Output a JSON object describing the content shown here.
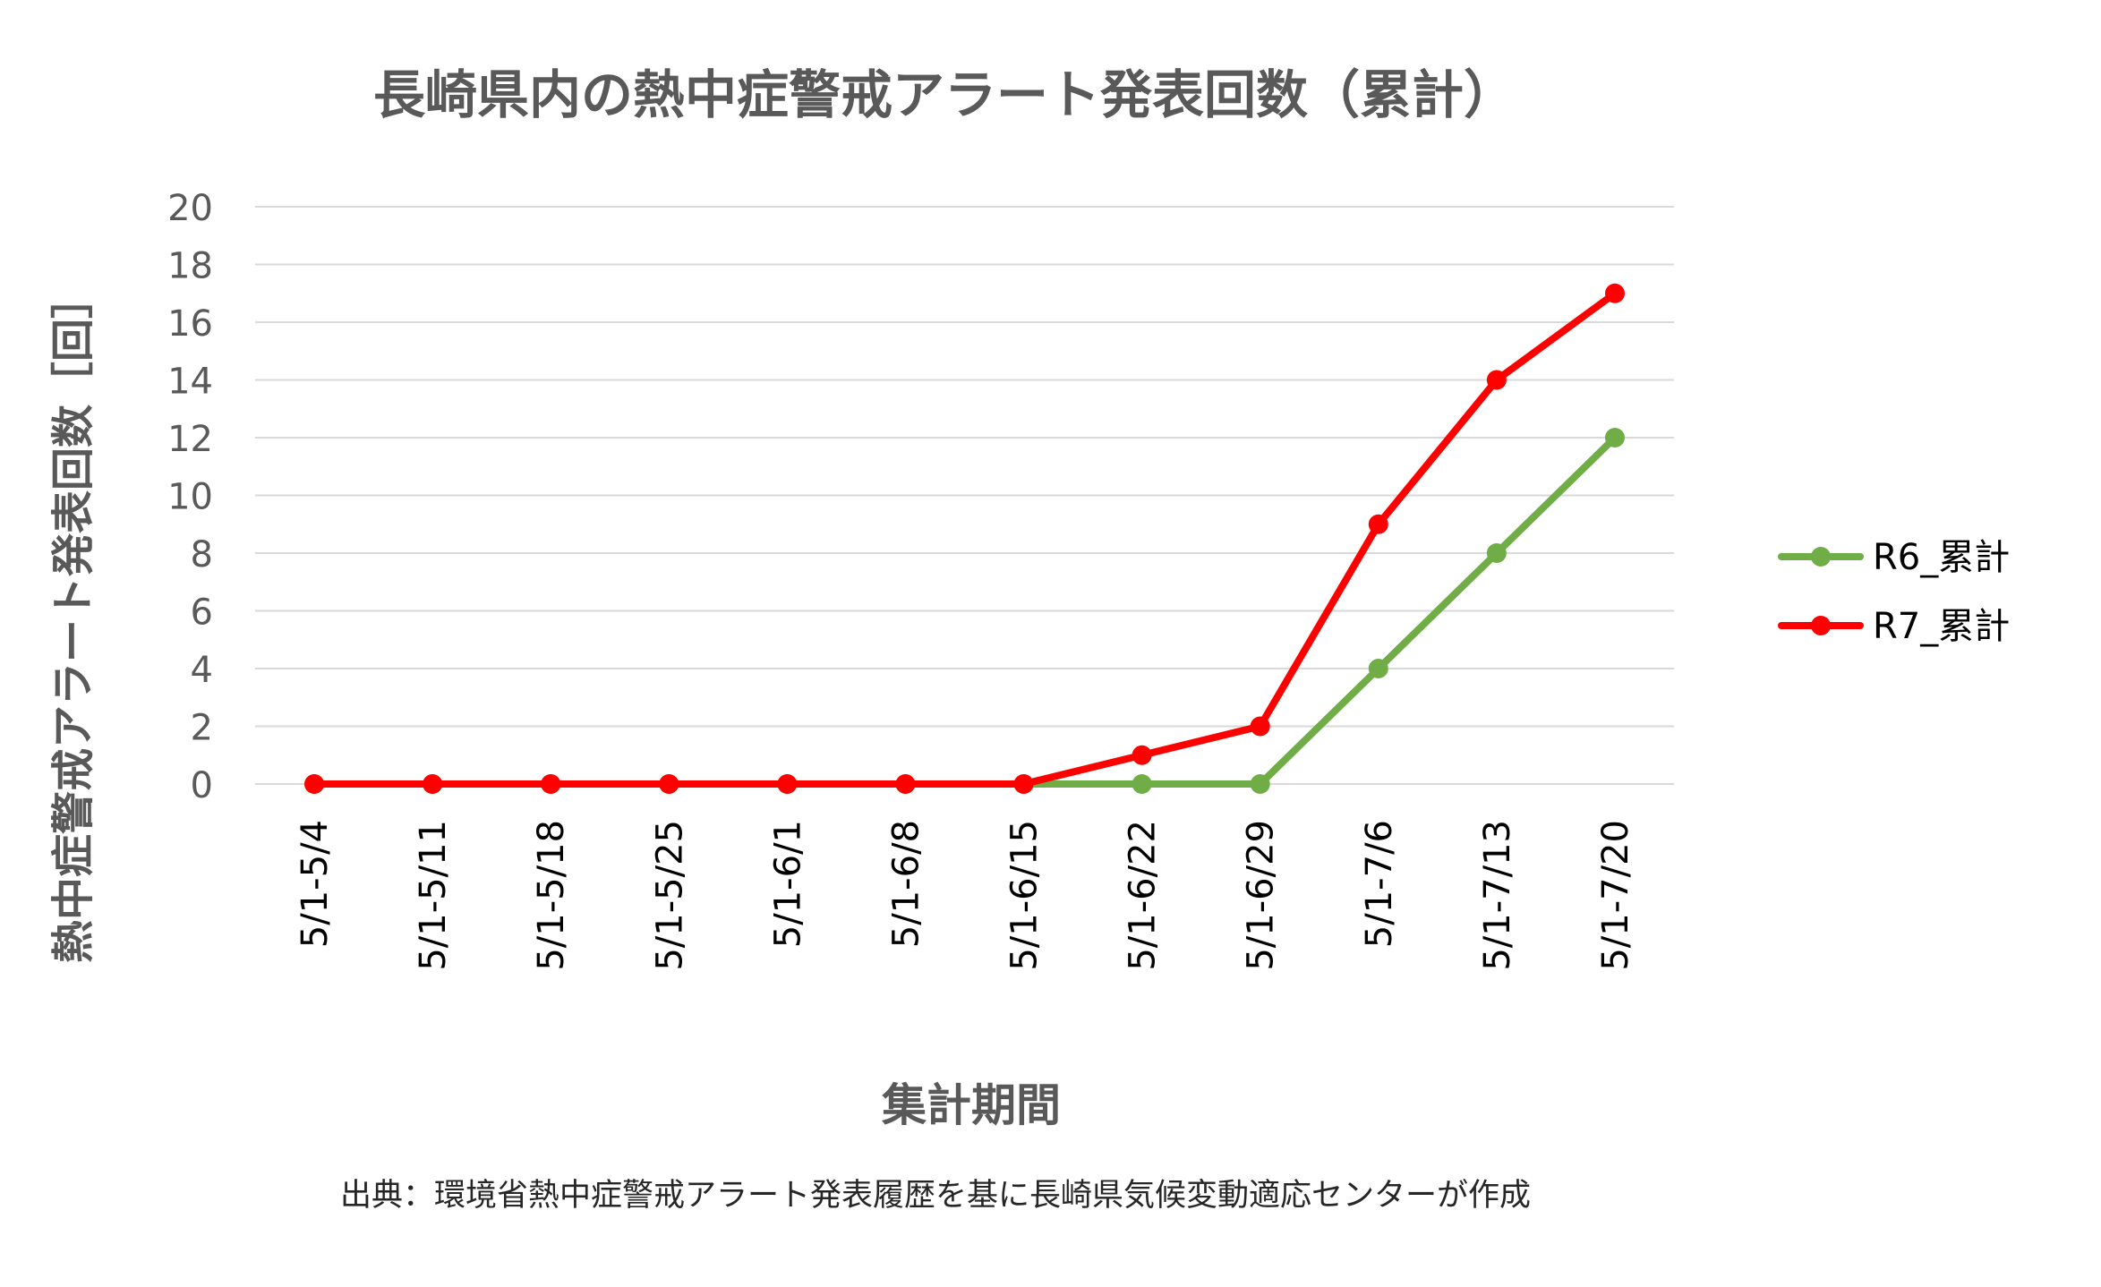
{
  "chart_data": {
    "type": "line",
    "title": "長崎県内の熱中症警戒アラート発表回数（累計）",
    "xlabel": "集計期間",
    "ylabel": "熱中症警戒アラート発表回数［回］",
    "categories": [
      "5/1-5/4",
      "5/1-5/11",
      "5/1-5/18",
      "5/1-5/25",
      "5/1-6/1",
      "5/1-6/8",
      "5/1-6/15",
      "5/1-6/22",
      "5/1-6/29",
      "5/1-7/6",
      "5/1-7/13",
      "5/1-7/20"
    ],
    "series": [
      {
        "name": "R6_累計",
        "color": "#70ad47",
        "values": [
          0,
          0,
          0,
          0,
          0,
          0,
          0,
          0,
          0,
          4,
          8,
          12
        ]
      },
      {
        "name": "R7_累計",
        "color": "#ff0000",
        "values": [
          0,
          0,
          0,
          0,
          0,
          0,
          0,
          1,
          2,
          9,
          14,
          17
        ]
      }
    ],
    "ylim": [
      0,
      20
    ],
    "yticks": [
      0,
      2,
      4,
      6,
      8,
      10,
      12,
      14,
      16,
      18,
      20
    ],
    "grid": true,
    "legend_position": "right",
    "source_note": "出典：環境省熱中症警戒アラート発表履歴を基に長崎県気候変動適応センターが作成"
  }
}
